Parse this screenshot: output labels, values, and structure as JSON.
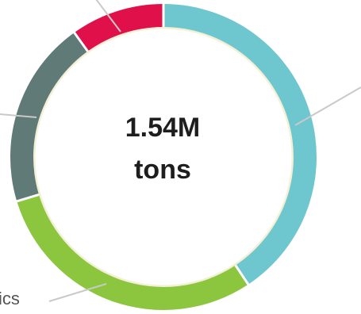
{
  "center": {
    "line1": "1.54M",
    "line2": "tons"
  },
  "visible_labels": {
    "bottom_left_fragment": "ics"
  },
  "chart_data": {
    "type": "pie",
    "donut": true,
    "title": "",
    "center_text": "1.54M tons",
    "unit": "tons",
    "total": 1540000,
    "slices": [
      {
        "name": "",
        "value": 0.37,
        "color": "#6ec6cf"
      },
      {
        "name": "ics",
        "value": 0.27,
        "color": "#8cc63f"
      },
      {
        "name": "",
        "value": 0.18,
        "color": "#5f7a77"
      },
      {
        "name": "",
        "value": 0.09,
        "color": "#e0104a"
      }
    ],
    "legend": "none"
  }
}
